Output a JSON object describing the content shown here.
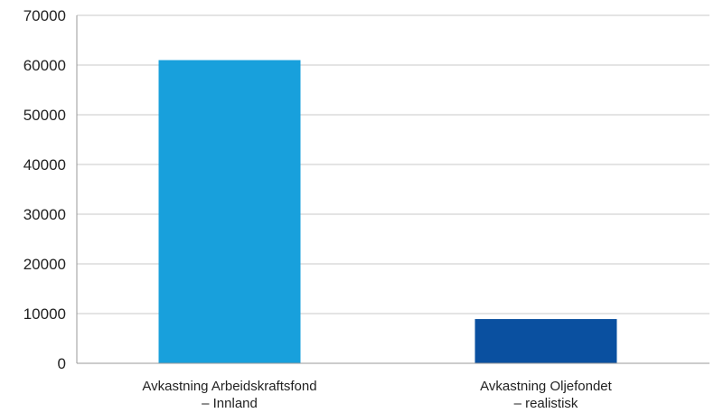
{
  "chart_data": {
    "type": "bar",
    "categories": [
      [
        "Avkastning Arbeidskraftsfond",
        "– Innland"
      ],
      [
        "Avkastning Oljefondet",
        "– realistisk"
      ]
    ],
    "values": [
      61000,
      8900
    ],
    "bar_colors": [
      "#18a0dc",
      "#0a50a0"
    ],
    "yticks": [
      "0",
      "10000",
      "20000",
      "30000",
      "40000",
      "50000",
      "60000",
      "70000"
    ],
    "ylim": [
      0,
      70000
    ],
    "grid": true,
    "legend": "none"
  }
}
